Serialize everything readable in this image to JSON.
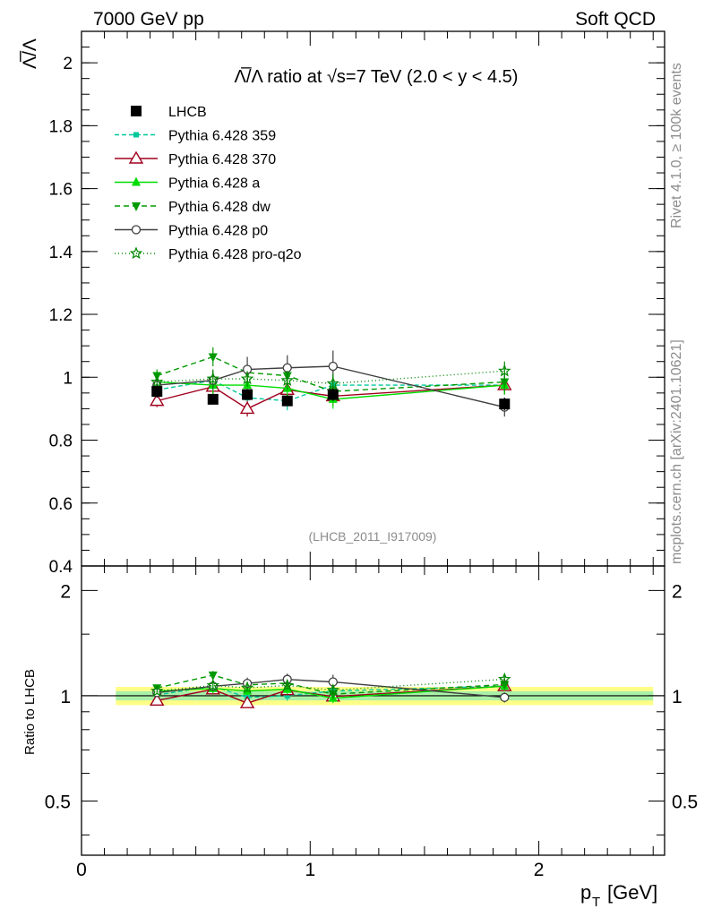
{
  "header": {
    "left_label": "7000 GeV pp",
    "right_label": "Soft QCD"
  },
  "side_labels": {
    "rivet": "Rivet 4.1.0, ≥ 100k events",
    "mcplots": "mcplots.cern.ch [arXiv:2401.10621]"
  },
  "chart_data": {
    "type": "line",
    "title": "Λ̅/Λ ratio at √s=7 TeV (2.0 < y < 4.5)",
    "analysis_id": "(LHCB_2011_I917009)",
    "ylabel": "Λ̅/Λ",
    "ratio_ylabel": "Ratio to LHCB",
    "xlabel": "p_T [GeV]",
    "xlim": [
      0,
      2.55
    ],
    "ylim": [
      0.4,
      2.1
    ],
    "ratio_ylim": [
      0.35,
      2.35
    ],
    "x_ticks": [
      "0",
      "1",
      "2"
    ],
    "y_ticks": [
      "0.4",
      "0.6",
      "0.8",
      "1",
      "1.2",
      "1.4",
      "1.6",
      "1.8",
      "2"
    ],
    "ratio_y_ticks": [
      "0.5",
      "1",
      "2"
    ],
    "x": [
      0.33,
      0.575,
      0.725,
      0.9,
      1.1,
      1.85
    ],
    "band_edges": [
      0.15,
      0.5,
      0.65,
      0.8,
      1.0,
      1.2,
      2.5
    ],
    "band_inner": [
      0.03,
      0.03,
      0.03,
      0.03,
      0.03,
      0.03
    ],
    "band_outer": [
      0.06,
      0.06,
      0.06,
      0.06,
      0.06,
      0.06
    ],
    "series": [
      {
        "name": "LHCB",
        "values": [
          0.955,
          0.93,
          0.945,
          0.925,
          0.945,
          0.915
        ],
        "errors": [
          0.02,
          0.015,
          0.015,
          0.015,
          0.02,
          0.02
        ],
        "color": "#000000",
        "marker": "square",
        "dash": ""
      },
      {
        "name": "Pythia 6.428 359",
        "values": [
          0.96,
          0.99,
          0.935,
          0.925,
          0.975,
          0.975
        ],
        "errors": [
          0.02,
          0.03,
          0.025,
          0.03,
          0.03,
          0.03
        ],
        "color": "#00c89a",
        "marker": "small-square",
        "dash": "5,3"
      },
      {
        "name": "Pythia 6.428 370",
        "values": [
          0.925,
          0.97,
          0.9,
          0.96,
          0.94,
          0.975
        ],
        "errors": [
          0.02,
          0.03,
          0.025,
          0.03,
          0.03,
          0.03
        ],
        "color": "#a0001e",
        "marker": "open-triangle",
        "dash": ""
      },
      {
        "name": "Pythia 6.428 a",
        "values": [
          0.985,
          0.975,
          0.975,
          0.965,
          0.93,
          0.975
        ],
        "errors": [
          0.02,
          0.03,
          0.025,
          0.03,
          0.03,
          0.03
        ],
        "color": "#00dd00",
        "marker": "triangle",
        "dash": ""
      },
      {
        "name": "Pythia 6.428 dw",
        "values": [
          1.005,
          1.065,
          1.015,
          1.005,
          0.955,
          0.985
        ],
        "errors": [
          0.02,
          0.03,
          0.025,
          0.03,
          0.03,
          0.03
        ],
        "color": "#009a00",
        "marker": "down-triangle",
        "dash": "6,4"
      },
      {
        "name": "Pythia 6.428 p0",
        "values": [
          0.975,
          0.99,
          1.025,
          1.03,
          1.035,
          0.905
        ],
        "errors": [
          0.02,
          0.03,
          0.04,
          0.04,
          0.05,
          0.03
        ],
        "color": "#404040",
        "marker": "open-circle",
        "dash": ""
      },
      {
        "name": "Pythia 6.428 pro-q2o",
        "values": [
          0.985,
          0.995,
          0.995,
          0.99,
          0.98,
          1.02
        ],
        "errors": [
          0.02,
          0.03,
          0.025,
          0.03,
          0.03,
          0.03
        ],
        "color": "#008800",
        "marker": "open-star",
        "dash": "1,3"
      }
    ]
  }
}
